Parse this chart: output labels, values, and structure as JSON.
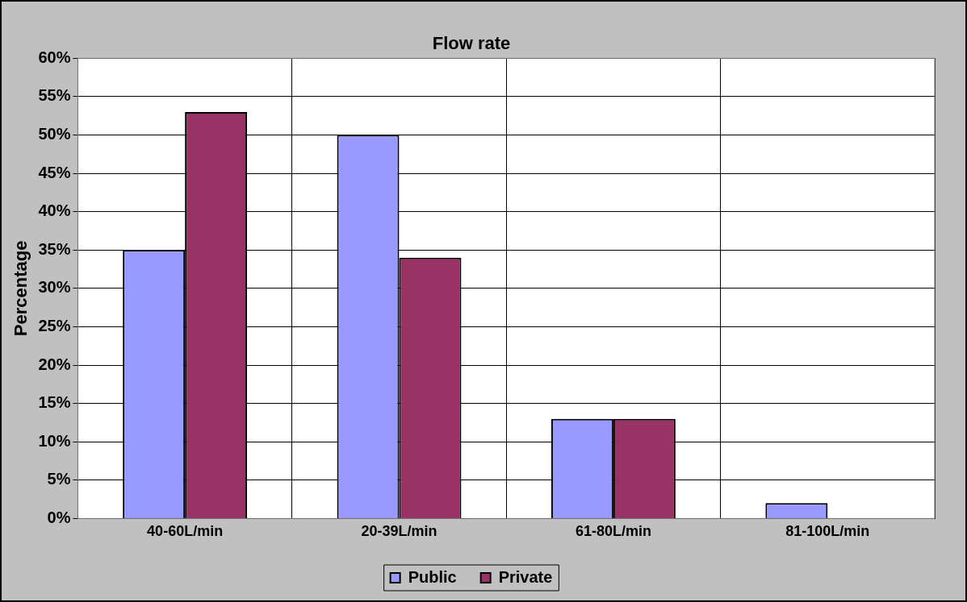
{
  "chart_data": {
    "type": "bar",
    "title": "Flow rate",
    "ylabel": "Percentage",
    "categories": [
      "40-60L/min",
      "20-39L/min",
      "61-80L/min",
      "81-100L/min"
    ],
    "series": [
      {
        "name": "Public",
        "color": "#9999ff",
        "values": [
          35,
          50,
          13,
          2
        ]
      },
      {
        "name": "Private",
        "color": "#993366",
        "values": [
          53,
          34,
          13,
          0
        ]
      }
    ],
    "ylim": [
      0,
      60
    ],
    "yticks": [
      {
        "value": 0,
        "label": "0%"
      },
      {
        "value": 5,
        "label": "5%"
      },
      {
        "value": 10,
        "label": "10%"
      },
      {
        "value": 15,
        "label": "15%"
      },
      {
        "value": 20,
        "label": "20%"
      },
      {
        "value": 25,
        "label": "25%"
      },
      {
        "value": 30,
        "label": "30%"
      },
      {
        "value": 35,
        "label": "35%"
      },
      {
        "value": 40,
        "label": "40%"
      },
      {
        "value": 45,
        "label": "45%"
      },
      {
        "value": 50,
        "label": "50%"
      },
      {
        "value": 55,
        "label": "55%"
      },
      {
        "value": 60,
        "label": "60%"
      }
    ],
    "grid": true,
    "legend": "bottom"
  }
}
